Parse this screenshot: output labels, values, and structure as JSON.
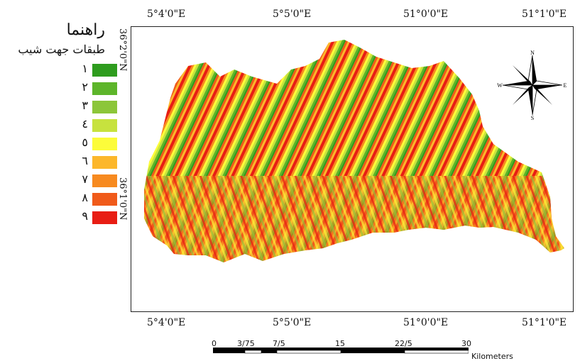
{
  "legend": {
    "title": "راهنما",
    "subtitle": "طبقات جهت شیب",
    "classes": [
      {
        "label": "١",
        "color": "#2e9c1e"
      },
      {
        "label": "٢",
        "color": "#5db52a"
      },
      {
        "label": "٣",
        "color": "#8cc63a"
      },
      {
        "label": "٤",
        "color": "#c7e23e"
      },
      {
        "label": "٥",
        "color": "#fcfc3a"
      },
      {
        "label": "٦",
        "color": "#fcb72b"
      },
      {
        "label": "٧",
        "color": "#f78a1f"
      },
      {
        "label": "٨",
        "color": "#f05a1a"
      },
      {
        "label": "٩",
        "color": "#e81d14"
      }
    ]
  },
  "coordinates": {
    "top": [
      "5°4'0\"E",
      "5°5'0\"E",
      "51°0'0\"E",
      "51°1'0\"E"
    ],
    "bottom": [
      "5°4'0\"E",
      "5°5'0\"E",
      "51°0'0\"E",
      "51°1'0\"E"
    ],
    "left": [
      "36°2'0\"N",
      "36°1'0\"N"
    ]
  },
  "north_arrow": {
    "n": "N",
    "s": "S",
    "e": "E",
    "w": "W"
  },
  "scale_bar": {
    "ticks": [
      "0",
      "3/75",
      "7/5",
      "15",
      "22/5",
      "30"
    ],
    "unit": "Kilometers"
  }
}
